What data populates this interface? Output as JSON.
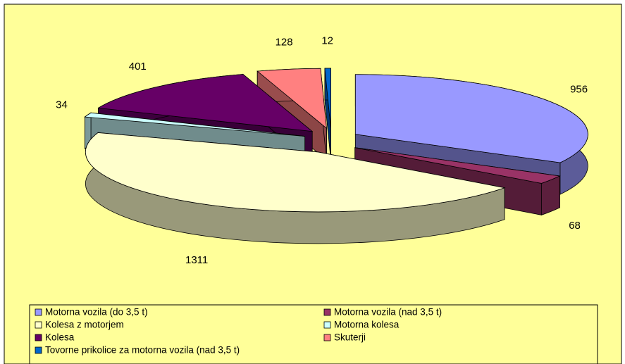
{
  "chart_data": {
    "type": "pie",
    "categories": [
      "Motorna vozila (do 3,5 t)",
      "Motorna vozila (nad 3,5 t)",
      "Kolesa z motorjem",
      "Motorna kolesa",
      "Kolesa",
      "Skuterji",
      "Tovorne prikolice za motorna vozila (nad 3,5 t)"
    ],
    "values": [
      956,
      68,
      1311,
      34,
      401,
      128,
      12
    ],
    "colors": [
      "#9999ff",
      "#993366",
      "#ffffcc",
      "#ccffff",
      "#660066",
      "#ff8080",
      "#0066cc"
    ],
    "legend": "bottom"
  }
}
